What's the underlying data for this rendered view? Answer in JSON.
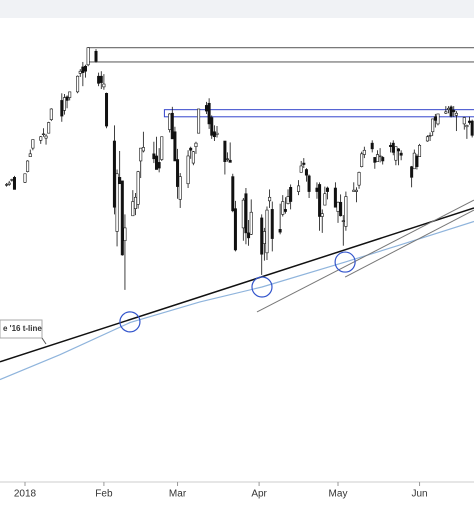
{
  "chart_data": {
    "type": "candlestick",
    "xlim": [
      -7.5,
      172.7
    ],
    "ylim": [
      2265,
      2939
    ],
    "xticks": [
      {
        "value": 2,
        "label": "2018"
      },
      {
        "value": 32,
        "label": "Feb"
      },
      {
        "value": 60,
        "label": "Mar"
      },
      {
        "value": 91,
        "label": "Apr"
      },
      {
        "value": 121,
        "label": "May"
      },
      {
        "value": 152,
        "label": "Jun"
      }
    ],
    "up_color": "#ffffff",
    "down_color": "#111111",
    "wick_color": "#111111",
    "x": [
      -5,
      -4,
      -3,
      -2,
      2,
      3,
      4,
      5,
      8,
      9,
      10,
      11,
      12,
      16,
      17,
      18,
      19,
      22,
      23,
      24,
      25,
      26,
      29,
      30,
      31,
      32,
      33,
      36,
      37,
      38,
      39,
      40,
      43,
      44,
      45,
      46,
      47,
      51,
      52,
      53,
      54,
      57,
      58,
      59,
      60,
      61,
      64,
      65,
      66,
      67,
      68,
      71,
      72,
      73,
      74,
      75,
      78,
      79,
      80,
      81,
      82,
      85,
      86,
      87,
      88,
      92,
      93,
      94,
      95,
      96,
      99,
      100,
      101,
      102,
      103,
      106,
      107,
      108,
      109,
      110,
      113,
      114,
      115,
      116,
      117,
      120,
      121,
      122,
      123,
      124,
      127,
      128,
      129,
      130,
      131,
      134,
      135,
      136,
      137,
      138,
      141,
      142,
      143,
      144,
      145,
      149,
      150,
      151,
      152,
      155,
      156,
      157,
      158,
      159,
      162,
      163,
      164,
      165,
      166,
      169,
      170,
      171,
      172
    ],
    "open": [
      2679,
      2680,
      2686,
      2690,
      2683,
      2698,
      2719,
      2731,
      2742,
      2751,
      2745,
      2752,
      2771,
      2798,
      2784,
      2803,
      2802,
      2810,
      2836,
      2845,
      2846,
      2848,
      2867,
      2832,
      2832,
      2817,
      2808,
      2741,
      2614,
      2690,
      2685,
      2601,
      2636,
      2646,
      2652,
      2713,
      2727,
      2723,
      2720,
      2711,
      2715,
      2757,
      2780,
      2754,
      2715,
      2659,
      2681,
      2731,
      2710,
      2733,
      2752,
      2791,
      2794,
      2774,
      2754,
      2750,
      2741,
      2715,
      2714,
      2691,
      2646,
      2619,
      2667,
      2612,
      2610,
      2633,
      2597,
      2584,
      2657,
      2645,
      2617,
      2638,
      2645,
      2653,
      2676,
      2670,
      2697,
      2710,
      2701,
      2692,
      2675,
      2680,
      2635,
      2651,
      2675,
      2675,
      2642,
      2655,
      2628,
      2621,
      2670,
      2670,
      2679,
      2705,
      2722,
      2738,
      2718,
      2712,
      2719,
      2718,
      2735,
      2738,
      2714,
      2730,
      2724,
      2705,
      2702,
      2720,
      2719,
      2741,
      2748,
      2754,
      2775,
      2765,
      2780,
      2785,
      2789,
      2784,
      2777,
      2765,
      2761,
      2769,
      2769
    ],
    "high": [
      2682,
      2685,
      2688,
      2692,
      2695,
      2714,
      2729,
      2743,
      2748,
      2759,
      2751,
      2768,
      2787,
      2808,
      2807,
      2805,
      2810,
      2833,
      2842,
      2852,
      2848,
      2872,
      2870,
      2837,
      2839,
      2835,
      2809,
      2763,
      2701,
      2727,
      2685,
      2638,
      2672,
      2668,
      2699,
      2731,
      2754,
      2740,
      2747,
      2731,
      2747,
      2780,
      2789,
      2761,
      2730,
      2696,
      2728,
      2733,
      2727,
      2740,
      2786,
      2796,
      2801,
      2777,
      2763,
      2762,
      2741,
      2725,
      2739,
      2695,
      2657,
      2661,
      2675,
      2630,
      2659,
      2638,
      2619,
      2649,
      2673,
      2656,
      2653,
      2665,
      2662,
      2673,
      2680,
      2686,
      2713,
      2717,
      2703,
      2694,
      2683,
      2683,
      2645,
      2677,
      2677,
      2683,
      2656,
      2666,
      2637,
      2670,
      2683,
      2676,
      2698,
      2726,
      2733,
      2742,
      2718,
      2728,
      2731,
      2720,
      2739,
      2742,
      2733,
      2731,
      2728,
      2706,
      2729,
      2723,
      2737,
      2749,
      2753,
      2772,
      2779,
      2779,
      2790,
      2790,
      2791,
      2790,
      2783,
      2775,
      2764,
      2775,
      2771
    ],
    "low": [
      2677,
      2678,
      2684,
      2673,
      2682,
      2697,
      2719,
      2728,
      2737,
      2747,
      2736,
      2752,
      2769,
      2768,
      2778,
      2787,
      2798,
      2808,
      2831,
      2818,
      2830,
      2846,
      2851,
      2818,
      2814,
      2813,
      2759,
      2638,
      2593,
      2681,
      2580,
      2532,
      2636,
      2637,
      2646,
      2689,
      2725,
      2710,
      2701,
      2697,
      2713,
      2753,
      2744,
      2713,
      2660,
      2647,
      2675,
      2716,
      2707,
      2723,
      2752,
      2779,
      2758,
      2744,
      2741,
      2746,
      2694,
      2712,
      2711,
      2641,
      2586,
      2601,
      2596,
      2594,
      2609,
      2553,
      2573,
      2574,
      2647,
      2586,
      2610,
      2635,
      2639,
      2652,
      2645,
      2665,
      2697,
      2703,
      2684,
      2661,
      2660,
      2615,
      2612,
      2651,
      2659,
      2648,
      2626,
      2635,
      2594,
      2615,
      2670,
      2655,
      2674,
      2704,
      2717,
      2725,
      2702,
      2712,
      2711,
      2708,
      2725,
      2721,
      2707,
      2707,
      2714,
      2676,
      2702,
      2701,
      2719,
      2740,
      2741,
      2748,
      2760,
      2763,
      2779,
      2780,
      2774,
      2775,
      2755,
      2757,
      2744,
      2764,
      2746
    ],
    "close": [
      2680,
      2682,
      2687,
      2673,
      2695,
      2713,
      2723,
      2743,
      2747,
      2751,
      2748,
      2767,
      2786,
      2776,
      2802,
      2798,
      2810,
      2832,
      2839,
      2837,
      2839,
      2872,
      2853,
      2822,
      2823,
      2821,
      2762,
      2648,
      2695,
      2681,
      2581,
      2619,
      2656,
      2662,
      2698,
      2731,
      2732,
      2716,
      2701,
      2703,
      2747,
      2779,
      2744,
      2713,
      2677,
      2691,
      2720,
      2728,
      2726,
      2738,
      2786,
      2783,
      2765,
      2749,
      2747,
      2752,
      2712,
      2716,
      2711,
      2643,
      2588,
      2658,
      2612,
      2605,
      2641,
      2582,
      2614,
      2644,
      2662,
      2604,
      2613,
      2656,
      2642,
      2663,
      2656,
      2678,
      2706,
      2708,
      2693,
      2670,
      2670,
      2635,
      2639,
      2667,
      2670,
      2648,
      2655,
      2636,
      2629,
      2663,
      2672,
      2672,
      2697,
      2723,
      2728,
      2730,
      2711,
      2722,
      2720,
      2713,
      2733,
      2725,
      2733,
      2727,
      2721,
      2690,
      2724,
      2705,
      2735,
      2747,
      2749,
      2772,
      2770,
      2779,
      2782,
      2787,
      2776,
      2782,
      2780,
      2774,
      2763,
      2767,
      2749
    ],
    "zones": [
      {
        "x": [
          26,
          173
        ],
        "y": [
          2852,
          2872
        ],
        "color": "#555555"
      },
      {
        "x": [
          55,
          173
        ],
        "y": [
          2775,
          2785
        ],
        "color": "#3344cc"
      }
    ],
    "lines": [
      {
        "x": [
          -7.5,
          15.3,
          41.9,
          68.5,
          92.1,
          123.7,
          144.6,
          172.7
        ],
        "y": [
          2406,
          2441,
          2486,
          2515,
          2536,
          2571,
          2595,
          2628
        ],
        "color": "#8fb4dc",
        "width": 1.2
      },
      {
        "x": [
          -7.5,
          172.7
        ],
        "y": [
          2431,
          2647
        ],
        "color": "#111111",
        "width": 1.5
      },
      {
        "x": [
          90.2,
          172.7
        ],
        "y": [
          2501,
          2658
        ],
        "color": "#777777",
        "width": 1
      },
      {
        "x": [
          123.7,
          172.7
        ],
        "y": [
          2550,
          2644
        ],
        "color": "#777777",
        "width": 1
      }
    ],
    "circles": {
      "x": [
        41.9,
        92.1,
        123.7
      ],
      "y": [
        2487,
        2536,
        2571
      ],
      "color": "#3355cc"
    },
    "annotation": "e '16 t-line"
  }
}
